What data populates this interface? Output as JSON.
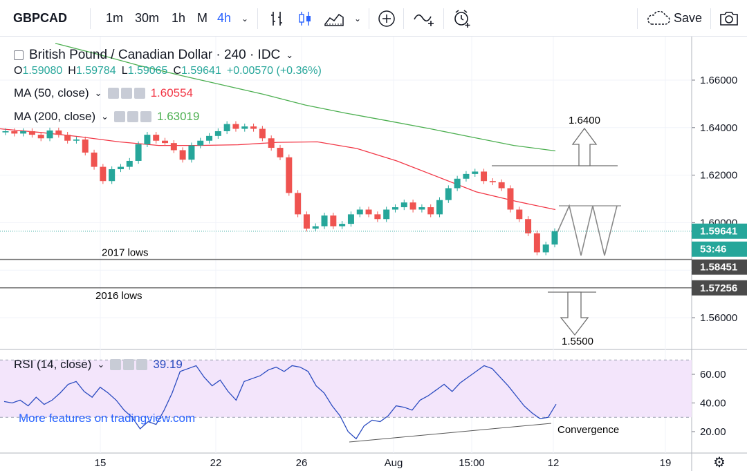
{
  "toolbar": {
    "symbol": "GBPCAD",
    "intervals": [
      "1m",
      "30m",
      "1h",
      "M",
      "4h"
    ],
    "active_interval": "4h",
    "save_label": "Save"
  },
  "header": {
    "title": "British Pound / Canadian Dollar · 240 · IDC",
    "ohlc": {
      "o_label": "O",
      "o": "1.59080",
      "h_label": "H",
      "h": "1.59784",
      "l_label": "L",
      "l": "1.59065",
      "c_label": "C",
      "c": "1.59641",
      "change": "+0.00570 (+0.36%)"
    },
    "ma50": {
      "label": "MA (50, close)",
      "value": "1.60554",
      "color": "#f23645"
    },
    "ma200": {
      "label": "MA (200, close)",
      "value": "1.63019",
      "color": "#4caf50"
    },
    "rsi": {
      "label": "RSI (14, close)",
      "value": "39.19",
      "color": "#2a4bc0"
    }
  },
  "watermark": "More features on tradingview.com",
  "price_axis": {
    "ticks": [
      "1.66000",
      "1.64000",
      "1.62000",
      "1.60000",
      "1.58000",
      "1.56000"
    ],
    "badges": {
      "last": "1.59641",
      "countdown": "53:46",
      "lows_2017": "1.58451",
      "lows_2016": "1.57256"
    }
  },
  "rsi_axis": {
    "ticks": [
      "60.00",
      "40.00",
      "20.00"
    ]
  },
  "time_axis": {
    "ticks": [
      "15",
      "22",
      "26",
      "Aug",
      "15:00",
      "12",
      "19"
    ]
  },
  "annotations": {
    "lows_2017": "2017 lows",
    "lows_2016": "2016 lows",
    "target_up": "1.6400",
    "target_down": "1.5500",
    "convergence": "Convergence"
  },
  "chart_data": {
    "type": "candlestick",
    "symbol": "GBPCAD",
    "interval": "240",
    "ylim": [
      1.545,
      1.67
    ],
    "levels": {
      "lows_2017": 1.58451,
      "lows_2016": 1.57256,
      "last": 1.59641
    },
    "targets": {
      "up": 1.64,
      "down": 1.55
    },
    "ma50": [
      1.6395,
      1.638,
      1.6362,
      1.634,
      1.6325,
      1.6325,
      1.6328,
      1.6338,
      1.634,
      1.6312,
      1.626,
      1.6195,
      1.613,
      1.609,
      1.6055
    ],
    "ma200": [
      1.6755,
      1.671,
      1.6662,
      1.662,
      1.658,
      1.654,
      1.6495,
      1.646,
      1.6428,
      1.6395,
      1.636,
      1.6325,
      1.6302
    ],
    "close": [
      1.6385,
      1.6375,
      1.6385,
      1.637,
      1.6355,
      1.6388,
      1.637,
      1.6345,
      1.635,
      1.6295,
      1.6235,
      1.6175,
      1.6225,
      1.6235,
      1.626,
      1.633,
      1.637,
      1.6345,
      1.6335,
      1.6305,
      1.6265,
      1.6325,
      1.6345,
      1.6365,
      1.6385,
      1.6415,
      1.6395,
      1.6405,
      1.6395,
      1.6355,
      1.6315,
      1.6275,
      1.6125,
      1.6035,
      1.5975,
      1.5985,
      1.603,
      1.5985,
      1.5995,
      1.6035,
      1.6055,
      1.6035,
      1.6015,
      1.6055,
      1.6065,
      1.6085,
      1.6055,
      1.6065,
      1.6035,
      1.6095,
      1.6145,
      1.6185,
      1.6205,
      1.6215,
      1.6175,
      1.617,
      1.6145,
      1.6055,
      1.6015,
      1.5955,
      1.5875,
      1.5908,
      1.5964
    ],
    "rsi": {
      "ylim": [
        8,
        72
      ],
      "bands": [
        30,
        70
      ],
      "values": [
        41,
        40,
        42,
        38,
        44,
        39,
        42,
        47,
        53,
        55,
        48,
        44,
        51,
        47,
        42,
        35,
        30,
        22,
        27,
        25,
        35,
        47,
        62,
        64,
        66,
        58,
        52,
        56,
        48,
        42,
        55,
        57,
        59,
        63,
        65,
        62,
        66,
        65,
        62,
        52,
        47,
        38,
        31,
        20,
        15,
        24,
        28,
        27,
        31,
        38,
        37,
        35,
        42,
        45,
        49,
        53,
        48,
        54,
        58,
        62,
        66,
        64,
        58,
        52,
        45,
        38,
        33,
        29,
        30,
        39.19
      ]
    },
    "time_labels": [
      "15",
      "22",
      "26",
      "Aug",
      "15:00",
      "12",
      "19"
    ]
  }
}
